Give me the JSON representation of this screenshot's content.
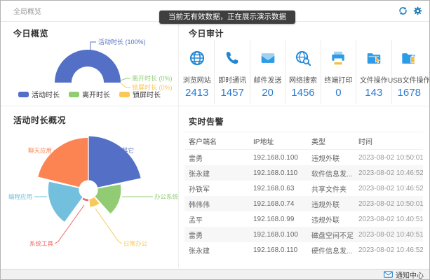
{
  "window": {
    "title": "全局概览"
  },
  "banner": {
    "text": "当前无有效数据，正在展示演示数据"
  },
  "today_overview": {
    "title": "今日概览",
    "legend": [
      {
        "label": "活动时长",
        "color": "#5470c6"
      },
      {
        "label": "离开时长",
        "color": "#91cc75"
      },
      {
        "label": "锁屏时长",
        "color": "#fac858"
      }
    ]
  },
  "today_audit": {
    "title": "今日审计",
    "stats": [
      {
        "label": "浏览网站",
        "value": "2413",
        "icon": "globe-icon"
      },
      {
        "label": "即时通讯",
        "value": "1457",
        "icon": "phone-icon"
      },
      {
        "label": "邮件发送",
        "value": "20",
        "icon": "mail-icon"
      },
      {
        "label": "网络搜索",
        "value": "1456",
        "icon": "web-search-icon"
      },
      {
        "label": "终端打印",
        "value": "0",
        "icon": "printer-icon"
      },
      {
        "label": "文件操作",
        "value": "143",
        "icon": "file-operation-icon"
      },
      {
        "label": "USB文件操作",
        "value": "1678",
        "icon": "usb-file-icon"
      }
    ]
  },
  "activity_overview": {
    "title": "活动时长概况"
  },
  "alerts": {
    "title": "实时告警",
    "columns": [
      "客户端名",
      "IP地址",
      "类型",
      "时间"
    ],
    "rows": [
      [
        "雷勇",
        "192.168.0.100",
        "违规外联",
        "2023-08-02 10:50:01"
      ],
      [
        "张永建",
        "192.168.0.110",
        "软件信息发...",
        "2023-08-02 10:46:52"
      ],
      [
        "孙铁军",
        "192.168.0.63",
        "共享文件夹",
        "2023-08-02 10:46:52"
      ],
      [
        "韩伟伟",
        "192.168.0.74",
        "违规外联",
        "2023-08-02 10:50:01"
      ],
      [
        "孟平",
        "192.168.0.99",
        "违规外联",
        "2023-08-02 10:40:51"
      ],
      [
        "雷勇",
        "192.168.0.100",
        "磁盘空间不足",
        "2023-08-02 10:40:51"
      ],
      [
        "张永建",
        "192.168.0.110",
        "硬件信息发...",
        "2023-08-02 10:46:52"
      ]
    ]
  },
  "statusbar": {
    "notification_center": "通知中心"
  },
  "colors": {
    "value_blue": "#2b7cd3",
    "icon_blue": "#2286d2",
    "titlebar_icon_blue": "#1a7dc0",
    "banner_bg": "#3f3f3f"
  },
  "chart_data": [
    {
      "id": "today-overview-half-donut",
      "type": "pie",
      "subtype": "half-donut",
      "title": "今日概览",
      "legend_position": "bottom",
      "slices": [
        {
          "label": "活动时长",
          "value_pct": 100,
          "color": "#5470c6",
          "callout": "活动时长 (100%)"
        },
        {
          "label": "离开时长",
          "value_pct": 0,
          "color": "#91cc75",
          "callout": "离开时长 (0%)"
        },
        {
          "label": "锁屏时长",
          "value_pct": 0,
          "color": "#fac858",
          "callout": "锁屏时长 (0%)"
        }
      ]
    },
    {
      "id": "activity-duration-rose",
      "type": "pie",
      "subtype": "nightingale-rose",
      "title": "活动时长概况",
      "slices": [
        {
          "label": "其它",
          "color": "#5470c6",
          "start_deg": 0,
          "end_deg": 78,
          "radius_frac": 1.0
        },
        {
          "label": "办公系统",
          "color": "#91cc75",
          "start_deg": 80,
          "end_deg": 138,
          "radius_frac": 0.61
        },
        {
          "label": "日常办公",
          "color": "#fac858",
          "start_deg": 140,
          "end_deg": 176,
          "radius_frac": 0.33
        },
        {
          "label": "系统工具",
          "color": "#ee6666",
          "start_deg": 178,
          "end_deg": 214,
          "radius_frac": 0.22
        },
        {
          "label": "编程应用",
          "color": "#73c0de",
          "start_deg": 216,
          "end_deg": 282,
          "radius_frac": 0.75
        },
        {
          "label": "聊天应用",
          "color": "#fc8452",
          "start_deg": 284,
          "end_deg": 360,
          "radius_frac": 0.97
        }
      ]
    }
  ]
}
